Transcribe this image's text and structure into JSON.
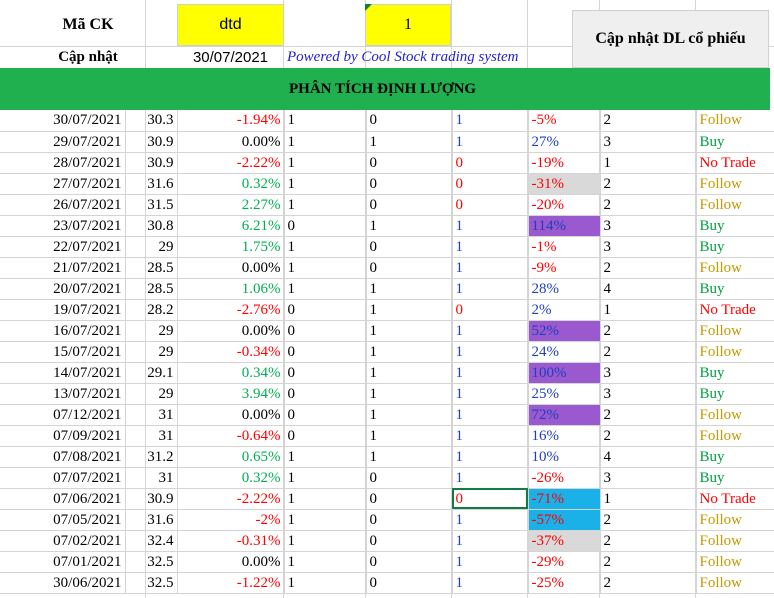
{
  "header": {
    "ma_ck_label": "Mã CK",
    "ma_ck_value": "dtd",
    "number_value": "1",
    "update_button": "Cập nhật DL cổ phiếu",
    "cap_nhat_label": "Cập nhật",
    "cap_nhat_date": "30/07/2021",
    "powered_by": "Powered by Cool Stock trading system",
    "banner": "PHÂN TÍCH ĐỊNH LƯỢNG"
  },
  "colors": {
    "yellow": "#ffff00",
    "green_banner": "#21b050",
    "button_gray": "#efefef"
  },
  "rows": [
    {
      "date": "30/07/2021",
      "price": "30.3",
      "change": "-1.94%",
      "a": "1",
      "b": "0",
      "c": "1",
      "pct": "-5%",
      "n": "2",
      "signal": "Follow"
    },
    {
      "date": "29/07/2021",
      "price": "30.9",
      "change": "0.00%",
      "a": "1",
      "b": "1",
      "c": "1",
      "pct": "27%",
      "n": "3",
      "signal": "Buy"
    },
    {
      "date": "28/07/2021",
      "price": "30.9",
      "change": "-2.22%",
      "a": "1",
      "b": "0",
      "c": "0",
      "pct": "-19%",
      "n": "1",
      "signal": "No Trade"
    },
    {
      "date": "27/07/2021",
      "price": "31.6",
      "change": "0.32%",
      "a": "1",
      "b": "0",
      "c": "0",
      "pct": "-31%",
      "n": "2",
      "signal": "Follow"
    },
    {
      "date": "26/07/2021",
      "price": "31.5",
      "change": "2.27%",
      "a": "1",
      "b": "0",
      "c": "0",
      "pct": "-20%",
      "n": "2",
      "signal": "Follow"
    },
    {
      "date": "23/07/2021",
      "price": "30.8",
      "change": "6.21%",
      "a": "0",
      "b": "1",
      "c": "1",
      "pct": "114%",
      "n": "3",
      "signal": "Buy"
    },
    {
      "date": "22/07/2021",
      "price": "29",
      "change": "1.75%",
      "a": "1",
      "b": "0",
      "c": "1",
      "pct": "-1%",
      "n": "3",
      "signal": "Buy"
    },
    {
      "date": "21/07/2021",
      "price": "28.5",
      "change": "0.00%",
      "a": "1",
      "b": "0",
      "c": "1",
      "pct": "-9%",
      "n": "2",
      "signal": "Follow"
    },
    {
      "date": "20/07/2021",
      "price": "28.5",
      "change": "1.06%",
      "a": "1",
      "b": "1",
      "c": "1",
      "pct": "28%",
      "n": "4",
      "signal": "Buy"
    },
    {
      "date": "19/07/2021",
      "price": "28.2",
      "change": "-2.76%",
      "a": "0",
      "b": "1",
      "c": "0",
      "pct": "2%",
      "n": "1",
      "signal": "No Trade"
    },
    {
      "date": "16/07/2021",
      "price": "29",
      "change": "0.00%",
      "a": "0",
      "b": "1",
      "c": "1",
      "pct": "52%",
      "n": "2",
      "signal": "Follow"
    },
    {
      "date": "15/07/2021",
      "price": "29",
      "change": "-0.34%",
      "a": "0",
      "b": "1",
      "c": "1",
      "pct": "24%",
      "n": "2",
      "signal": "Follow"
    },
    {
      "date": "14/07/2021",
      "price": "29.1",
      "change": "0.34%",
      "a": "0",
      "b": "1",
      "c": "1",
      "pct": "100%",
      "n": "3",
      "signal": "Buy"
    },
    {
      "date": "13/07/2021",
      "price": "29",
      "change": "3.94%",
      "a": "0",
      "b": "1",
      "c": "1",
      "pct": "25%",
      "n": "3",
      "signal": "Buy"
    },
    {
      "date": "07/12/2021",
      "price": "31",
      "change": "0.00%",
      "a": "0",
      "b": "1",
      "c": "1",
      "pct": "72%",
      "n": "2",
      "signal": "Follow"
    },
    {
      "date": "07/09/2021",
      "price": "31",
      "change": "-0.64%",
      "a": "0",
      "b": "1",
      "c": "1",
      "pct": "16%",
      "n": "2",
      "signal": "Follow"
    },
    {
      "date": "07/08/2021",
      "price": "31.2",
      "change": "0.65%",
      "a": "1",
      "b": "1",
      "c": "1",
      "pct": "10%",
      "n": "4",
      "signal": "Buy"
    },
    {
      "date": "07/07/2021",
      "price": "31",
      "change": "0.32%",
      "a": "1",
      "b": "0",
      "c": "1",
      "pct": "-26%",
      "n": "3",
      "signal": "Buy"
    },
    {
      "date": "07/06/2021",
      "price": "30.9",
      "change": "-2.22%",
      "a": "1",
      "b": "0",
      "c": "0",
      "pct": "-71%",
      "n": "1",
      "signal": "No Trade"
    },
    {
      "date": "07/05/2021",
      "price": "31.6",
      "change": "-2%",
      "a": "1",
      "b": "0",
      "c": "1",
      "pct": "-57%",
      "n": "2",
      "signal": "Follow"
    },
    {
      "date": "07/02/2021",
      "price": "32.4",
      "change": "-0.31%",
      "a": "1",
      "b": "0",
      "c": "1",
      "pct": "-37%",
      "n": "2",
      "signal": "Follow"
    },
    {
      "date": "07/01/2021",
      "price": "32.5",
      "change": "0.00%",
      "a": "1",
      "b": "0",
      "c": "1",
      "pct": "-29%",
      "n": "2",
      "signal": "Follow"
    },
    {
      "date": "30/06/2021",
      "price": "32.5",
      "change": "-1.22%",
      "a": "1",
      "b": "0",
      "c": "1",
      "pct": "-25%",
      "n": "2",
      "signal": "Follow"
    }
  ]
}
